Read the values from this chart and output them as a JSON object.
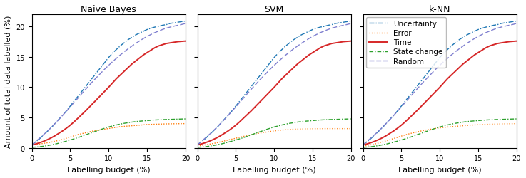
{
  "titles": [
    "Naive Bayes",
    "SVM",
    "k-NN"
  ],
  "xlabel": "Labelling budget (%)",
  "ylabel": "Amount of total data labelled (%)",
  "xlim": [
    0,
    20
  ],
  "ylim": [
    0,
    22
  ],
  "xticks": [
    0,
    5,
    10,
    15,
    20
  ],
  "yticks": [
    0,
    5,
    10,
    15,
    20
  ],
  "x": [
    0,
    0.5,
    1,
    1.5,
    2,
    2.5,
    3,
    3.5,
    4,
    4.5,
    5,
    5.5,
    6,
    6.5,
    7,
    7.5,
    8,
    8.5,
    9,
    9.5,
    10,
    10.5,
    11,
    11.5,
    12,
    12.5,
    13,
    13.5,
    14,
    14.5,
    15,
    15.5,
    16,
    16.5,
    17,
    17.5,
    18,
    18.5,
    19,
    19.5,
    20
  ],
  "lines": {
    "Uncertainty": {
      "color": "#1f77b4",
      "linestyle": "-.",
      "linewidth": 1.0,
      "slope": 1.02,
      "intercept": 0.5,
      "curve": 0.0
    },
    "Error": {
      "color": "#ff7f0e",
      "linestyle": ":",
      "linewidth": 1.0,
      "slope": 0.0,
      "intercept": 0.3,
      "curve": 0.0
    },
    "Time": {
      "color": "#d62728",
      "linestyle": "-",
      "linewidth": 1.4,
      "slope": 0.0,
      "intercept": 0.5,
      "curve": 0.0
    },
    "State change": {
      "color": "#2ca02c",
      "linestyle": "-.",
      "linewidth": 1.0,
      "slope": 0.0,
      "intercept": 0.1,
      "curve": 0.0
    },
    "Random": {
      "color": "#7f7fcf",
      "linestyle": "--",
      "linewidth": 1.0,
      "slope": 1.05,
      "intercept": 0.5,
      "curve": 0.0
    }
  },
  "curves": {
    "Uncertainty_nb": [
      0.5,
      1.0,
      1.5,
      2.1,
      2.7,
      3.3,
      4.0,
      4.7,
      5.4,
      6.1,
      6.9,
      7.7,
      8.5,
      9.3,
      10.1,
      10.9,
      11.7,
      12.5,
      13.3,
      14.1,
      14.9,
      15.6,
      16.2,
      16.8,
      17.3,
      17.8,
      18.2,
      18.6,
      18.9,
      19.2,
      19.5,
      19.7,
      19.9,
      20.0,
      20.2,
      20.3,
      20.5,
      20.6,
      20.7,
      20.8,
      20.9
    ],
    "Error_nb": [
      0.5,
      0.55,
      0.65,
      0.75,
      0.85,
      0.95,
      1.1,
      1.25,
      1.4,
      1.6,
      1.8,
      2.0,
      2.2,
      2.35,
      2.5,
      2.65,
      2.8,
      2.9,
      3.0,
      3.1,
      3.2,
      3.3,
      3.4,
      3.5,
      3.55,
      3.6,
      3.65,
      3.7,
      3.75,
      3.8,
      3.85,
      3.88,
      3.9,
      3.92,
      3.94,
      3.96,
      3.97,
      3.98,
      3.99,
      4.0,
      4.0
    ],
    "Time_nb": [
      0.5,
      0.65,
      0.85,
      1.08,
      1.35,
      1.65,
      2.0,
      2.4,
      2.8,
      3.25,
      3.75,
      4.3,
      4.9,
      5.5,
      6.1,
      6.75,
      7.4,
      8.05,
      8.7,
      9.35,
      10.0,
      10.7,
      11.4,
      12.0,
      12.6,
      13.2,
      13.8,
      14.3,
      14.8,
      15.3,
      15.7,
      16.1,
      16.5,
      16.8,
      17.0,
      17.2,
      17.3,
      17.4,
      17.5,
      17.55,
      17.6
    ],
    "StateChange_nb": [
      0.1,
      0.15,
      0.2,
      0.28,
      0.38,
      0.5,
      0.63,
      0.78,
      0.95,
      1.12,
      1.3,
      1.5,
      1.7,
      1.92,
      2.15,
      2.38,
      2.6,
      2.82,
      3.05,
      3.25,
      3.45,
      3.62,
      3.78,
      3.92,
      4.05,
      4.15,
      4.25,
      4.33,
      4.4,
      4.45,
      4.5,
      4.55,
      4.6,
      4.63,
      4.66,
      4.68,
      4.7,
      4.72,
      4.74,
      4.76,
      4.78
    ],
    "Random_nb": [
      0.5,
      1.05,
      1.6,
      2.15,
      2.75,
      3.35,
      4.0,
      4.65,
      5.35,
      6.05,
      6.75,
      7.5,
      8.2,
      8.95,
      9.65,
      10.35,
      11.05,
      11.7,
      12.35,
      13.0,
      13.6,
      14.2,
      14.75,
      15.3,
      15.8,
      16.3,
      16.75,
      17.2,
      17.6,
      18.0,
      18.35,
      18.68,
      18.98,
      19.25,
      19.5,
      19.72,
      19.9,
      20.05,
      20.2,
      20.33,
      20.5
    ],
    "Uncertainty_svm": [
      0.5,
      1.0,
      1.5,
      2.1,
      2.7,
      3.3,
      4.0,
      4.7,
      5.4,
      6.1,
      6.9,
      7.7,
      8.5,
      9.3,
      10.1,
      10.9,
      11.7,
      12.5,
      13.3,
      14.1,
      14.9,
      15.6,
      16.2,
      16.8,
      17.3,
      17.8,
      18.2,
      18.6,
      18.9,
      19.2,
      19.5,
      19.7,
      19.9,
      20.0,
      20.2,
      20.3,
      20.5,
      20.6,
      20.7,
      20.8,
      20.9
    ],
    "Error_svm": [
      0.3,
      0.4,
      0.5,
      0.6,
      0.72,
      0.85,
      1.0,
      1.15,
      1.3,
      1.45,
      1.6,
      1.75,
      1.9,
      2.05,
      2.18,
      2.3,
      2.42,
      2.52,
      2.62,
      2.72,
      2.8,
      2.88,
      2.94,
      3.0,
      3.04,
      3.08,
      3.1,
      3.12,
      3.14,
      3.15,
      3.16,
      3.17,
      3.17,
      3.18,
      3.18,
      3.18,
      3.18,
      3.18,
      3.18,
      3.18,
      3.18
    ],
    "Time_svm": [
      0.5,
      0.65,
      0.85,
      1.08,
      1.35,
      1.65,
      2.0,
      2.4,
      2.8,
      3.25,
      3.75,
      4.3,
      4.9,
      5.5,
      6.1,
      6.75,
      7.4,
      8.05,
      8.7,
      9.35,
      10.0,
      10.7,
      11.4,
      12.0,
      12.6,
      13.2,
      13.8,
      14.3,
      14.8,
      15.3,
      15.7,
      16.1,
      16.5,
      16.8,
      17.0,
      17.2,
      17.3,
      17.4,
      17.5,
      17.55,
      17.6
    ],
    "StateChange_svm": [
      0.1,
      0.15,
      0.2,
      0.28,
      0.38,
      0.5,
      0.63,
      0.78,
      0.95,
      1.12,
      1.3,
      1.5,
      1.7,
      1.92,
      2.15,
      2.38,
      2.6,
      2.82,
      3.05,
      3.25,
      3.45,
      3.62,
      3.78,
      3.92,
      4.05,
      4.15,
      4.25,
      4.33,
      4.4,
      4.45,
      4.5,
      4.55,
      4.6,
      4.63,
      4.66,
      4.68,
      4.7,
      4.72,
      4.74,
      4.76,
      4.78
    ],
    "Random_svm": [
      0.5,
      1.05,
      1.6,
      2.15,
      2.75,
      3.35,
      4.0,
      4.65,
      5.35,
      6.05,
      6.75,
      7.5,
      8.2,
      8.95,
      9.65,
      10.35,
      11.05,
      11.7,
      12.35,
      13.0,
      13.6,
      14.2,
      14.75,
      15.3,
      15.8,
      16.3,
      16.75,
      17.2,
      17.6,
      18.0,
      18.35,
      18.68,
      18.98,
      19.25,
      19.5,
      19.72,
      19.9,
      20.05,
      20.2,
      20.33,
      20.5
    ],
    "Uncertainty_knn": [
      0.5,
      1.0,
      1.5,
      2.1,
      2.7,
      3.3,
      4.0,
      4.7,
      5.4,
      6.1,
      6.9,
      7.7,
      8.5,
      9.3,
      10.1,
      10.9,
      11.7,
      12.5,
      13.3,
      14.1,
      14.9,
      15.6,
      16.2,
      16.8,
      17.3,
      17.8,
      18.2,
      18.6,
      18.9,
      19.2,
      19.5,
      19.7,
      19.9,
      20.0,
      20.2,
      20.3,
      20.5,
      20.6,
      20.7,
      20.8,
      20.9
    ],
    "Error_knn": [
      0.3,
      0.4,
      0.52,
      0.65,
      0.8,
      0.97,
      1.15,
      1.35,
      1.55,
      1.75,
      1.95,
      2.15,
      2.32,
      2.48,
      2.63,
      2.77,
      2.9,
      3.02,
      3.12,
      3.22,
      3.3,
      3.38,
      3.44,
      3.5,
      3.55,
      3.6,
      3.65,
      3.7,
      3.75,
      3.79,
      3.82,
      3.85,
      3.88,
      3.9,
      3.92,
      3.94,
      3.96,
      3.97,
      3.98,
      3.99,
      4.0
    ],
    "Time_knn": [
      0.5,
      0.65,
      0.85,
      1.08,
      1.35,
      1.65,
      2.0,
      2.4,
      2.8,
      3.25,
      3.75,
      4.3,
      4.9,
      5.5,
      6.1,
      6.75,
      7.4,
      8.05,
      8.7,
      9.35,
      10.0,
      10.7,
      11.4,
      12.0,
      12.6,
      13.2,
      13.8,
      14.3,
      14.8,
      15.3,
      15.7,
      16.1,
      16.5,
      16.8,
      17.0,
      17.2,
      17.3,
      17.4,
      17.5,
      17.55,
      17.6
    ],
    "StateChange_knn": [
      0.1,
      0.15,
      0.2,
      0.28,
      0.38,
      0.5,
      0.63,
      0.78,
      0.95,
      1.12,
      1.3,
      1.5,
      1.7,
      1.92,
      2.15,
      2.38,
      2.6,
      2.82,
      3.05,
      3.25,
      3.45,
      3.62,
      3.78,
      3.92,
      4.05,
      4.15,
      4.25,
      4.33,
      4.4,
      4.45,
      4.5,
      4.55,
      4.6,
      4.63,
      4.66,
      4.68,
      4.7,
      4.72,
      4.74,
      4.76,
      4.78
    ],
    "Random_knn": [
      0.5,
      1.05,
      1.6,
      2.15,
      2.75,
      3.35,
      4.0,
      4.65,
      5.35,
      6.05,
      6.75,
      7.5,
      8.2,
      8.95,
      9.65,
      10.35,
      11.05,
      11.7,
      12.35,
      13.0,
      13.6,
      14.2,
      14.75,
      15.3,
      15.8,
      16.3,
      16.75,
      17.2,
      17.6,
      18.0,
      18.35,
      18.68,
      18.98,
      19.25,
      19.5,
      19.72,
      19.9,
      20.05,
      20.2,
      20.33,
      20.5
    ]
  },
  "legend_order": [
    "Uncertainty",
    "Error",
    "Time",
    "State change",
    "Random"
  ],
  "line_styles": {
    "Uncertainty": {
      "color": "#1f77b4",
      "linestyle": "-.",
      "linewidth": 1.0
    },
    "Error": {
      "color": "#ff7f0e",
      "linestyle": ":",
      "linewidth": 1.0
    },
    "Time": {
      "color": "#d62728",
      "linestyle": "-",
      "linewidth": 1.4
    },
    "State change": {
      "color": "#2ca02c",
      "linestyle": "-.",
      "linewidth": 1.0
    },
    "Random": {
      "color": "#7f7fcf",
      "linestyle": "--",
      "linewidth": 1.0
    }
  },
  "background_color": "#ffffff",
  "figsize": [
    7.37,
    2.51
  ],
  "dpi": 100
}
